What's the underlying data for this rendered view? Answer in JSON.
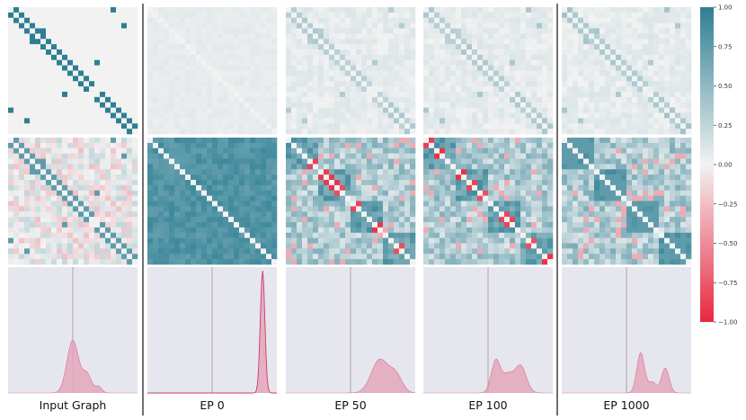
{
  "chart_data": {
    "type": "heatmap",
    "columns": [
      "Input Graph",
      "EP 0",
      "EP 50",
      "EP 100",
      "EP 1000"
    ],
    "matrix_size": 24,
    "colorbar": {
      "range": [
        -1.0,
        1.0
      ],
      "ticks": [
        "1.00",
        "0.75",
        "0.50",
        "0.25",
        "0.00",
        "−0.25",
        "−0.50",
        "−0.75",
        "−1.00"
      ],
      "tick_values": [
        1.0,
        0.75,
        0.5,
        0.25,
        0.0,
        -0.25,
        -0.5,
        -0.75,
        -1.0
      ],
      "color_positive": "#2e7f93",
      "color_neutral": "#f2f2f2",
      "color_negative": "#e8283f"
    },
    "rows": [
      {
        "name": "adjacency",
        "description_free": true
      },
      {
        "name": "correlation"
      },
      {
        "name": "density"
      }
    ],
    "adjacency_input_edges": [
      [
        0,
        1
      ],
      [
        1,
        2
      ],
      [
        2,
        3
      ],
      [
        3,
        4
      ],
      [
        4,
        5
      ],
      [
        4,
        6
      ],
      [
        5,
        6
      ],
      [
        6,
        7
      ],
      [
        7,
        8
      ],
      [
        8,
        9
      ],
      [
        9,
        10
      ],
      [
        10,
        11
      ],
      [
        11,
        12
      ],
      [
        12,
        13
      ],
      [
        13,
        14
      ],
      [
        14,
        15
      ],
      [
        16,
        17
      ],
      [
        17,
        18
      ],
      [
        18,
        19
      ],
      [
        19,
        20
      ],
      [
        20,
        21
      ],
      [
        21,
        22
      ],
      [
        22,
        23
      ],
      [
        0,
        19
      ],
      [
        10,
        16
      ],
      [
        3,
        21
      ]
    ],
    "density_peaks": [
      {
        "column": "Input Graph",
        "peaks": [
          {
            "x": 0.0,
            "h": 1.0,
            "w": 0.09
          },
          {
            "x": 0.22,
            "h": 0.35,
            "w": 0.07
          },
          {
            "x": 0.4,
            "h": 0.12,
            "w": 0.05
          }
        ]
      },
      {
        "column": "EP 0",
        "peaks": [
          {
            "x": 0.78,
            "h": 1.0,
            "w": 0.035
          }
        ]
      },
      {
        "column": "EP 50",
        "peaks": [
          {
            "x": 0.45,
            "h": 0.48,
            "w": 0.13
          },
          {
            "x": 0.7,
            "h": 0.25,
            "w": 0.1
          }
        ]
      },
      {
        "column": "EP 100",
        "peaks": [
          {
            "x": 0.12,
            "h": 0.38,
            "w": 0.07
          },
          {
            "x": 0.5,
            "h": 0.32,
            "w": 0.09
          },
          {
            "x": 0.3,
            "h": 0.2,
            "w": 0.08
          }
        ]
      },
      {
        "column": "EP 1000",
        "peaks": [
          {
            "x": 0.22,
            "h": 0.45,
            "w": 0.06
          },
          {
            "x": 0.6,
            "h": 0.28,
            "w": 0.06
          },
          {
            "x": 0.4,
            "h": 0.12,
            "w": 0.06
          }
        ]
      }
    ],
    "density_xlim": [
      -1.0,
      1.0
    ],
    "density_fill": "#e3a6ba",
    "density_line": "#cc3b6a",
    "density_bg": "#e6e6ef",
    "grid": false,
    "legend": "right"
  }
}
